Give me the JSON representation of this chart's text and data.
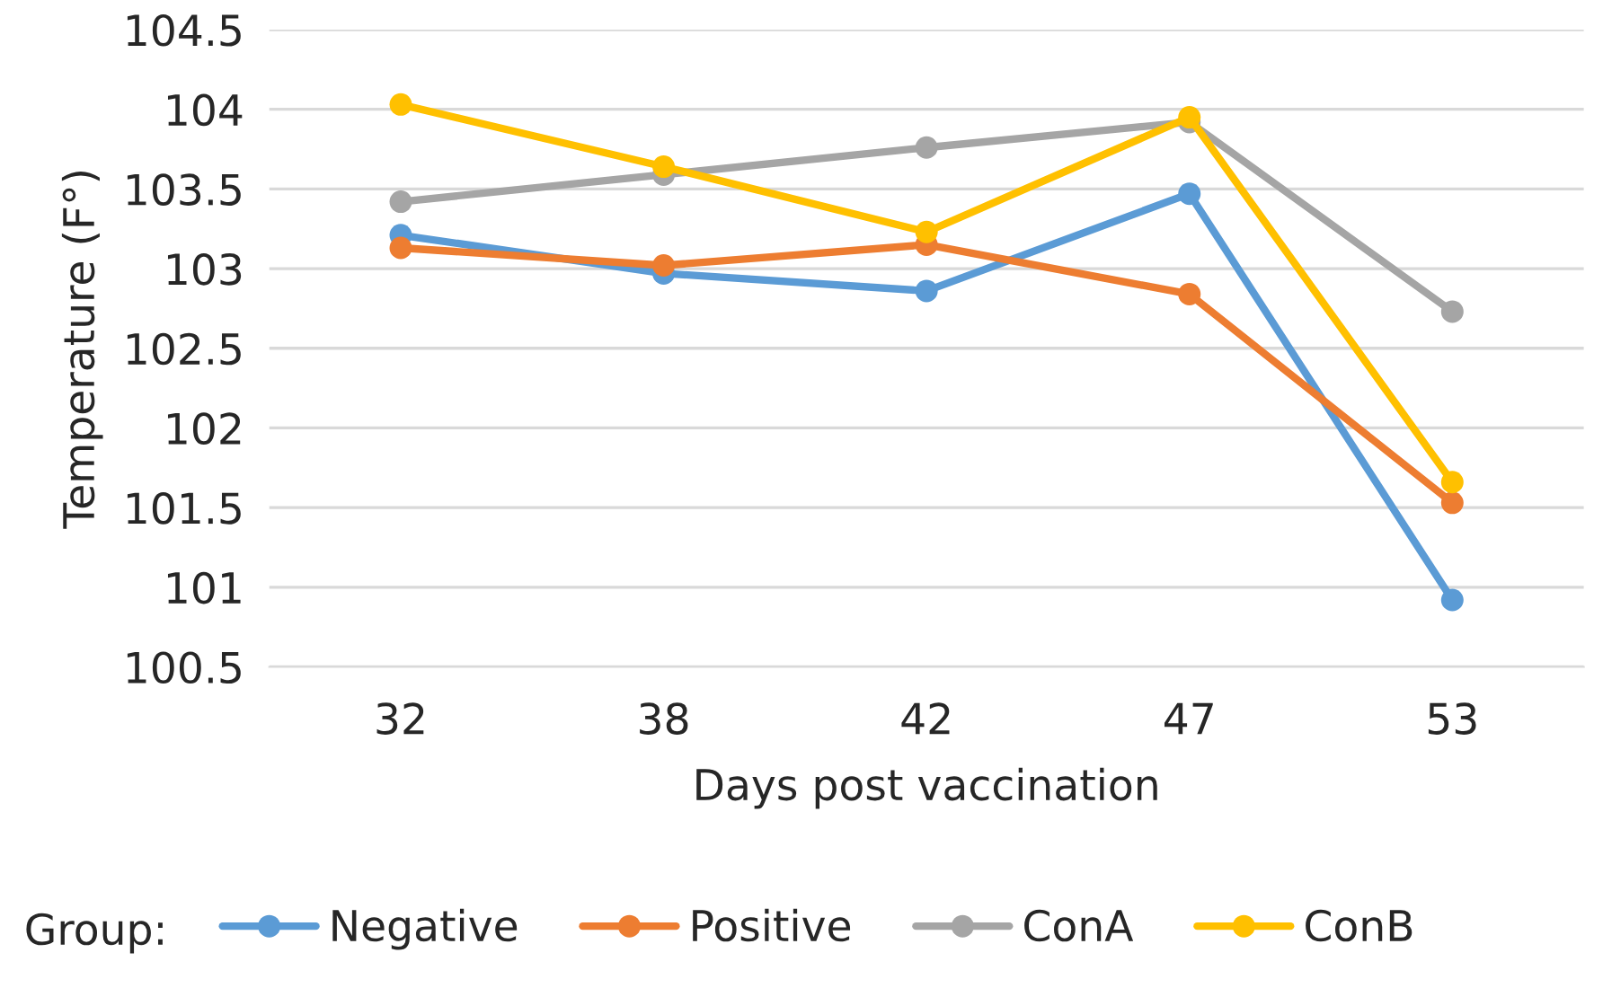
{
  "chart_data": {
    "type": "line",
    "xlabel": "Days post vaccination",
    "ylabel": "Temperature (F°)",
    "legend_title": "Group:",
    "categories": [
      "32",
      "38",
      "42",
      "47",
      "53"
    ],
    "series": [
      {
        "name": "Negative",
        "color": "#5b9bd5",
        "values": [
          103.21,
          102.97,
          102.86,
          103.47,
          100.92
        ]
      },
      {
        "name": "Positive",
        "color": "#ed7d31",
        "values": [
          103.13,
          103.02,
          103.15,
          102.84,
          101.53
        ]
      },
      {
        "name": "ConA",
        "color": "#a5a5a5",
        "values": [
          103.42,
          103.59,
          103.76,
          103.92,
          102.73
        ]
      },
      {
        "name": "ConB",
        "color": "#ffc000",
        "values": [
          104.03,
          103.64,
          103.23,
          103.95,
          101.66
        ]
      }
    ],
    "ylim": [
      100.5,
      104.5
    ],
    "yticks": [
      100.5,
      101,
      101.5,
      102,
      102.5,
      103,
      103.5,
      104,
      104.5
    ],
    "grid": "y",
    "legend": "bottom",
    "marker": "circle",
    "line_style": "solid"
  }
}
